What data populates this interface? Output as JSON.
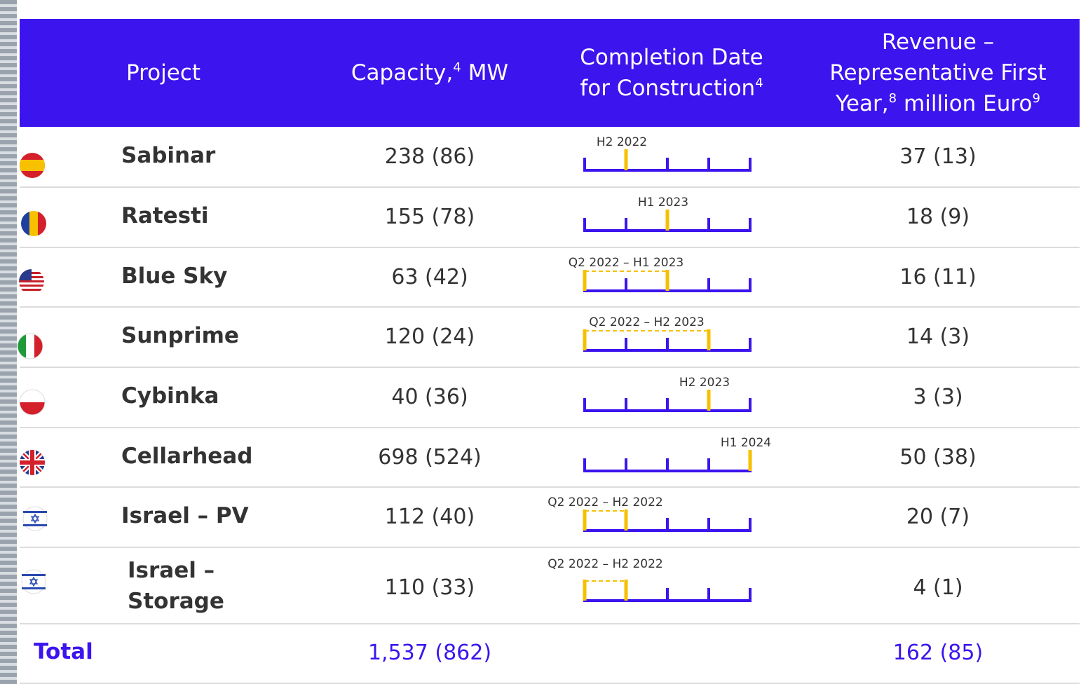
{
  "table": {
    "headers": [
      {
        "text": "Project"
      },
      {
        "text": "Capacity,",
        "sup": "4",
        "text2": "MW"
      },
      {
        "text": "Completion Date for Construction",
        "sup": "4"
      },
      {
        "text": "Revenue – Representative First Year,",
        "sup": "8",
        "text2": "million Euro",
        "sup2": "9"
      }
    ],
    "rows": [
      {
        "project": "Sabinar",
        "capacity": "238 (86)",
        "completion": "H2 2022",
        "revenue": "37 (13)"
      },
      {
        "project": "Ratesti",
        "capacity": "155 (78)",
        "completion": "H1 2023",
        "revenue": "18 (9)"
      },
      {
        "project": "Blue Sky",
        "capacity": "63 (42)",
        "completion": "Q2 2022 – H1 2023",
        "revenue": "16 (11)"
      },
      {
        "project": "Sunprime",
        "capacity": "120 (24)",
        "completion": "Q2 2022 – H2 2023",
        "revenue": "14 (3)"
      },
      {
        "project": "Cybinka",
        "capacity": "40 (36)",
        "completion": "H2 2023",
        "revenue": "3 (3)"
      },
      {
        "project": "Cellarhead",
        "capacity": "698 (524)",
        "completion": "H1 2024",
        "revenue": "50 (38)"
      },
      {
        "project": "Israel – PV",
        "capacity": "112 (40)",
        "completion": "Q2 2022 – H2 2022",
        "revenue": "20 (7)"
      },
      {
        "project": "Israel – Storage",
        "capacity": "110 (33)",
        "completion": "Q2 2022 – H2 2022",
        "revenue": "4 (1)"
      }
    ],
    "total": {
      "label": "Total",
      "capacity": "1,537 (862)",
      "revenue": "162 (85)"
    }
  }
}
